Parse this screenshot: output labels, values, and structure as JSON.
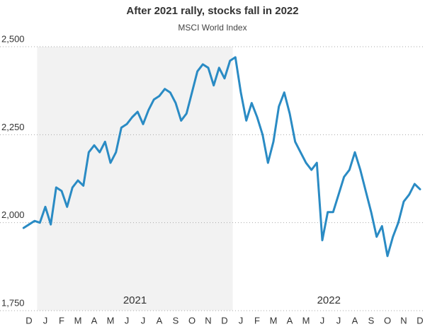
{
  "chart_data": {
    "type": "line",
    "title": "After 2021 rally, stocks fall in 2022",
    "subtitle": "MSCI World Index",
    "annotations": [
      "2021",
      "2022"
    ],
    "color": "#2a8bc4",
    "categories": [
      null,
      "D",
      null,
      null,
      "J",
      null,
      null,
      "F",
      null,
      null,
      "M",
      null,
      null,
      "A",
      null,
      null,
      "M",
      null,
      null,
      "J",
      null,
      null,
      "J",
      null,
      null,
      "A",
      null,
      null,
      "S",
      null,
      null,
      "O",
      null,
      null,
      "N",
      null,
      null,
      "D",
      null,
      null,
      "J",
      null,
      null,
      "F",
      null,
      null,
      "M",
      null,
      null,
      "A",
      null,
      null,
      "M",
      null,
      null,
      "J",
      null,
      null,
      "J",
      null,
      null,
      "A",
      null,
      null,
      "S",
      null,
      null,
      "O",
      null,
      null,
      "N",
      null,
      null,
      "D"
    ],
    "values": [
      1985,
      1995,
      2005,
      2000,
      2045,
      1995,
      2100,
      2090,
      2045,
      2100,
      2120,
      2105,
      2200,
      2220,
      2200,
      2230,
      2170,
      2200,
      2270,
      2280,
      2300,
      2315,
      2280,
      2320,
      2350,
      2360,
      2380,
      2370,
      2340,
      2290,
      2310,
      2370,
      2430,
      2450,
      2440,
      2390,
      2440,
      2410,
      2460,
      2470,
      2370,
      2290,
      2340,
      2300,
      2250,
      2170,
      2230,
      2330,
      2370,
      2310,
      2230,
      2200,
      2170,
      2150,
      2170,
      1950,
      2030,
      2030,
      2080,
      2130,
      2150,
      2200,
      2150,
      2090,
      2030,
      1960,
      1990,
      1905,
      1960,
      2000,
      2060,
      2080,
      2110,
      2095
    ],
    "ylim": [
      1750,
      2500
    ],
    "yticks": [
      {
        "value": 1750,
        "label": "1,750"
      },
      {
        "value": 2000,
        "label": "2,000"
      },
      {
        "value": 2250,
        "label": "2,250"
      },
      {
        "value": 2500,
        "label": "2,500"
      }
    ],
    "grid": true
  }
}
